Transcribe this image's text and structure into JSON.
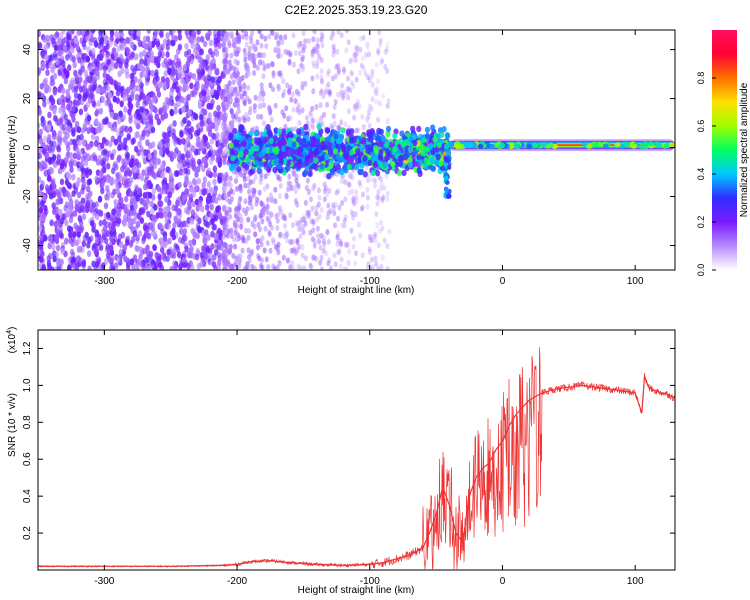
{
  "title": "C2E2.2025.353.19.23.G20",
  "chart_data": [
    {
      "type": "heatmap",
      "name": "spectrogram",
      "xlabel": "Height of straight line (km)",
      "ylabel": "Frequency (Hz)",
      "xlim": [
        -350,
        130
      ],
      "ylim": [
        -50,
        48
      ],
      "xticks": [
        -300,
        -200,
        -100,
        0,
        100
      ],
      "yticks": [
        -40,
        -20,
        0,
        20,
        40
      ],
      "signal_line_frequency_hz": 1,
      "regions": [
        {
          "x_from": -350,
          "x_to": -210,
          "y_from": -50,
          "y_to": 48,
          "description": "dense purple noise"
        },
        {
          "x_from": -210,
          "x_to": -110,
          "y_from": -50,
          "y_to": 48,
          "description": "sparse faint noise"
        },
        {
          "x_from": -205,
          "x_to": -40,
          "y_from": -12,
          "y_to": 7,
          "description": "strong broadband band"
        },
        {
          "x_from": -40,
          "x_to": 130,
          "y_from": -1,
          "y_to": 4,
          "description": "narrow carrier line"
        }
      ],
      "colorbar": {
        "label": "Normalized spectral amplitude",
        "range": [
          0,
          1
        ],
        "ticks": [
          "0.0",
          "0.2",
          "0.4",
          "0.6",
          "0.8"
        ],
        "colors": [
          "#ffffff",
          "#b68cff",
          "#7a1bff",
          "#2f2fff",
          "#00c8ff",
          "#00ff60",
          "#a0ff00",
          "#ffe000",
          "#ff7000",
          "#ff0033",
          "#ff1060"
        ]
      }
    },
    {
      "type": "line",
      "name": "snr",
      "xlabel": "Height of straight line (km)",
      "ylabel": "SNR (10 * v/v)",
      "multiplier_base": "(x10",
      "multiplier_exp": "4",
      "multiplier_close": ")",
      "xlim": [
        -350,
        130
      ],
      "ylim": [
        0,
        1.3
      ],
      "xticks": [
        -300,
        -200,
        -100,
        0,
        100
      ],
      "yticks": [
        0.2,
        0.4,
        0.6,
        0.8,
        1.0,
        1.2
      ],
      "ytick_labels": [
        "0.2",
        "0.4",
        "0.6",
        "0.8",
        "1.0",
        "1.2"
      ],
      "color": "#ee3333",
      "series": [
        {
          "name": "SNR",
          "x": [
            -350,
            -300,
            -250,
            -210,
            -200,
            -190,
            -175,
            -160,
            -140,
            -120,
            -100,
            -90,
            -80,
            -70,
            -60,
            -55,
            -50,
            -45,
            -40,
            -35,
            -30,
            -25,
            -20,
            -15,
            -10,
            -5,
            0,
            5,
            10,
            15,
            20,
            25,
            30,
            40,
            50,
            60,
            70,
            80,
            90,
            100,
            105,
            107,
            110,
            115,
            120,
            125,
            130
          ],
          "values": [
            0.02,
            0.02,
            0.02,
            0.025,
            0.03,
            0.045,
            0.05,
            0.04,
            0.03,
            0.025,
            0.03,
            0.04,
            0.06,
            0.08,
            0.12,
            0.2,
            0.3,
            0.45,
            0.35,
            0.2,
            0.15,
            0.4,
            0.5,
            0.55,
            0.58,
            0.65,
            0.7,
            0.78,
            0.84,
            0.88,
            0.92,
            0.94,
            0.96,
            0.98,
            0.99,
            1.0,
            0.99,
            0.98,
            0.97,
            0.96,
            0.85,
            1.05,
            0.99,
            0.97,
            0.96,
            0.95,
            0.93
          ]
        }
      ]
    }
  ]
}
